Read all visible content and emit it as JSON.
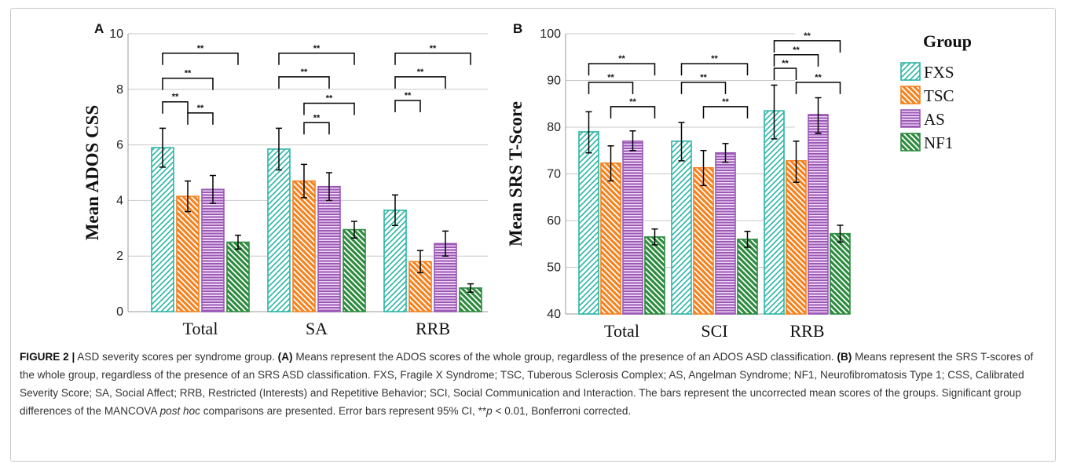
{
  "panels": [
    {
      "letter": "A",
      "ylabel": "Mean ADOS CSS",
      "ylim": [
        0,
        10
      ],
      "yticks": [
        "0",
        "2",
        "4",
        "6",
        "8",
        "10"
      ]
    },
    {
      "letter": "B",
      "ylabel": "Mean SRS T-Score",
      "ylim": [
        40,
        100
      ],
      "yticks": [
        "40",
        "50",
        "60",
        "70",
        "80",
        "90",
        "100"
      ]
    }
  ],
  "legend": {
    "title": "Group",
    "items": [
      {
        "label": "FXS",
        "color": "#2ab5a6",
        "pattern": "diag-fwd"
      },
      {
        "label": "TSC",
        "color": "#f5821f",
        "pattern": "diag-back"
      },
      {
        "label": "AS",
        "color": "#9b59b6",
        "pattern": "horizontal"
      },
      {
        "label": "NF1",
        "color": "#2e8b3f",
        "pattern": "diag-back"
      }
    ]
  },
  "significance_label": "**",
  "chart_data": [
    {
      "type": "bar",
      "panel": "A",
      "ylabel": "Mean ADOS CSS",
      "ylim": [
        0,
        10
      ],
      "grid": true,
      "categories": [
        "Total",
        "SA",
        "RRB"
      ],
      "series": [
        {
          "name": "FXS",
          "values": [
            5.9,
            5.85,
            3.65
          ],
          "ci_low": [
            5.2,
            5.1,
            3.1
          ],
          "ci_high": [
            6.6,
            6.6,
            4.2
          ]
        },
        {
          "name": "TSC",
          "values": [
            4.15,
            4.7,
            1.8
          ],
          "ci_low": [
            3.6,
            4.1,
            1.4
          ],
          "ci_high": [
            4.7,
            5.3,
            2.2
          ]
        },
        {
          "name": "AS",
          "values": [
            4.4,
            4.5,
            2.45
          ],
          "ci_low": [
            3.9,
            4.0,
            2.0
          ],
          "ci_high": [
            4.9,
            5.0,
            2.9
          ]
        },
        {
          "name": "NF1",
          "values": [
            2.5,
            2.95,
            0.85
          ],
          "ci_low": [
            2.25,
            2.65,
            0.7
          ],
          "ci_high": [
            2.75,
            3.25,
            1.0
          ]
        }
      ],
      "comparisons": [
        {
          "category": 0,
          "from": 0,
          "to": 1,
          "y": 7.55
        },
        {
          "category": 0,
          "from": 1,
          "to": 2,
          "y": 7.15
        },
        {
          "category": 0,
          "from": 0,
          "to": 2,
          "y": 8.4
        },
        {
          "category": 0,
          "from": 0,
          "to": 3,
          "y": 9.3
        },
        {
          "category": 1,
          "from": 0,
          "to": 2,
          "y": 8.45
        },
        {
          "category": 1,
          "from": 0,
          "to": 3,
          "y": 9.3
        },
        {
          "category": 1,
          "from": 1,
          "to": 3,
          "y": 7.5
        },
        {
          "category": 1,
          "from": 1,
          "to": 2,
          "y": 6.8
        },
        {
          "category": 2,
          "from": 0,
          "to": 1,
          "y": 7.6
        },
        {
          "category": 2,
          "from": 0,
          "to": 2,
          "y": 8.45
        },
        {
          "category": 2,
          "from": 0,
          "to": 3,
          "y": 9.3
        }
      ]
    },
    {
      "type": "bar",
      "panel": "B",
      "ylabel": "Mean SRS T-Score",
      "ylim": [
        40,
        100
      ],
      "grid": true,
      "categories": [
        "Total",
        "SCI",
        "RRB"
      ],
      "series": [
        {
          "name": "FXS",
          "values": [
            79,
            77,
            83.5
          ],
          "ci_low": [
            74.5,
            72.8,
            77.5
          ],
          "ci_high": [
            83.3,
            81,
            89
          ]
        },
        {
          "name": "TSC",
          "values": [
            72.3,
            71.3,
            72.8
          ],
          "ci_low": [
            68.5,
            67.5,
            68.2
          ],
          "ci_high": [
            76,
            75,
            77
          ]
        },
        {
          "name": "AS",
          "values": [
            77,
            74.5,
            82.7
          ],
          "ci_low": [
            75,
            72.5,
            78.7
          ],
          "ci_high": [
            79.2,
            76.5,
            86.3
          ]
        },
        {
          "name": "NF1",
          "values": [
            56.5,
            56,
            57.2
          ],
          "ci_low": [
            54.8,
            54.3,
            55.4
          ],
          "ci_high": [
            58.2,
            57.7,
            59
          ]
        }
      ],
      "comparisons": [
        {
          "category": 0,
          "from": 0,
          "to": 2,
          "y": 89.6
        },
        {
          "category": 0,
          "from": 0,
          "to": 3,
          "y": 93.6
        },
        {
          "category": 0,
          "from": 1,
          "to": 3,
          "y": 84.4
        },
        {
          "category": 1,
          "from": 0,
          "to": 2,
          "y": 89.6
        },
        {
          "category": 1,
          "from": 0,
          "to": 3,
          "y": 93.6
        },
        {
          "category": 1,
          "from": 1,
          "to": 3,
          "y": 84.4
        },
        {
          "category": 2,
          "from": 0,
          "to": 1,
          "y": 92.6
        },
        {
          "category": 2,
          "from": 0,
          "to": 2,
          "y": 95.5
        },
        {
          "category": 2,
          "from": 0,
          "to": 3,
          "y": 98.5
        },
        {
          "category": 2,
          "from": 1,
          "to": 3,
          "y": 89.6
        }
      ]
    }
  ],
  "caption": {
    "label": "FIGURE 2 |",
    "title": " ASD severity scores per syndrome group. ",
    "a_label": "(A)",
    "a_text": " Means represent the ADOS scores of the whole group, regardless of the presence of an ADOS ASD classification. ",
    "b_label": "(B)",
    "b_text": " Means represent the SRS T-scores of the whole group, regardless of the presence of an SRS ASD classification. FXS, Fragile X Syndrome; TSC, Tuberous Sclerosis Complex; AS, Angelman Syndrome; NF1, Neurofibromatosis Type 1; CSS, Calibrated Severity Score; SA, Social Affect; RRB, Restricted (Interests) and Repetitive Behavior; SCI, Social Communication and Interaction. The bars represent the uncorrected mean scores of the groups. Significant group differences of the MANCOVA ",
    "italic_text": "post hoc",
    "text_end": " comparisons are presented. Error bars represent 95% CI, **",
    "p_label": "p",
    "p_text": " < 0.01, Bonferroni corrected."
  }
}
